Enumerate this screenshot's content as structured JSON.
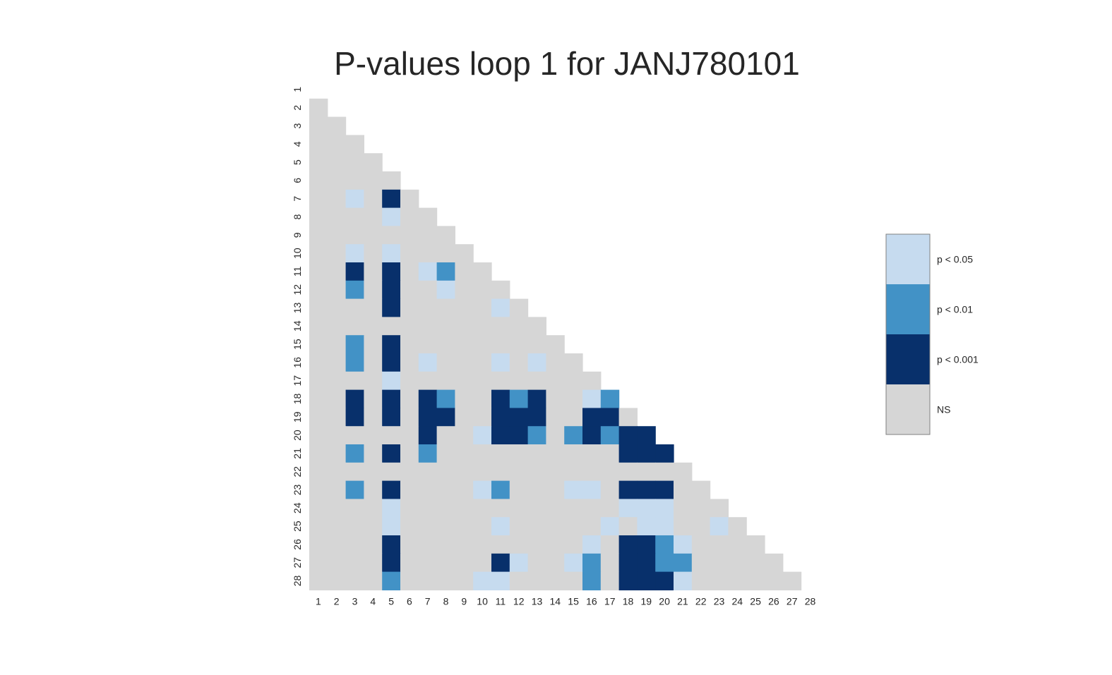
{
  "chart_data": {
    "type": "heatmap",
    "title": "P-values loop 1 for JANJ780101",
    "xlabel": "",
    "ylabel": "",
    "x_ticks": [
      "1",
      "2",
      "3",
      "4",
      "5",
      "6",
      "7",
      "8",
      "9",
      "10",
      "11",
      "12",
      "13",
      "14",
      "15",
      "16",
      "17",
      "18",
      "19",
      "20",
      "21",
      "22",
      "23",
      "24",
      "25",
      "26",
      "27",
      "28"
    ],
    "y_ticks": [
      "1",
      "2",
      "3",
      "4",
      "5",
      "6",
      "7",
      "8",
      "9",
      "10",
      "11",
      "12",
      "13",
      "14",
      "15",
      "16",
      "17",
      "18",
      "19",
      "20",
      "21",
      "22",
      "23",
      "24",
      "25",
      "26",
      "27",
      "28"
    ],
    "mask": "upper-triangle (lower triangle shown, diagonal hidden)",
    "grid": false,
    "legend": {
      "placement": "right",
      "levels": [
        {
          "key": 3,
          "label": "p < 0.05",
          "color": "#c6dbef"
        },
        {
          "key": 2,
          "label": "p < 0.01",
          "color": "#4292c6"
        },
        {
          "key": 1,
          "label": "p < 0.001",
          "color": "#08306b"
        },
        {
          "key": 0,
          "label": "NS",
          "color": "#d6d6d6"
        }
      ]
    },
    "level_codes": {
      "0": "NS",
      "1": "p < 0.001",
      "2": "p < 0.01",
      "3": "p < 0.05"
    },
    "cells": [
      [],
      [
        0
      ],
      [
        0,
        0
      ],
      [
        0,
        0,
        0
      ],
      [
        0,
        0,
        0,
        0
      ],
      [
        0,
        0,
        0,
        0,
        0
      ],
      [
        0,
        0,
        3,
        0,
        1,
        0
      ],
      [
        0,
        0,
        0,
        0,
        3,
        0,
        0
      ],
      [
        0,
        0,
        0,
        0,
        0,
        0,
        0,
        0
      ],
      [
        0,
        0,
        3,
        0,
        3,
        0,
        0,
        0,
        0
      ],
      [
        0,
        0,
        1,
        0,
        1,
        0,
        3,
        2,
        0,
        0
      ],
      [
        0,
        0,
        2,
        0,
        1,
        0,
        0,
        3,
        0,
        0,
        0
      ],
      [
        0,
        0,
        0,
        0,
        1,
        0,
        0,
        0,
        0,
        0,
        3,
        0
      ],
      [
        0,
        0,
        0,
        0,
        0,
        0,
        0,
        0,
        0,
        0,
        0,
        0,
        0
      ],
      [
        0,
        0,
        2,
        0,
        1,
        0,
        0,
        0,
        0,
        0,
        0,
        0,
        0,
        0
      ],
      [
        0,
        0,
        2,
        0,
        1,
        0,
        3,
        0,
        0,
        0,
        3,
        0,
        3,
        0,
        0
      ],
      [
        0,
        0,
        0,
        0,
        3,
        0,
        0,
        0,
        0,
        0,
        0,
        0,
        0,
        0,
        0,
        0
      ],
      [
        0,
        0,
        1,
        0,
        1,
        0,
        1,
        2,
        0,
        0,
        1,
        2,
        1,
        0,
        0,
        3,
        2
      ],
      [
        0,
        0,
        1,
        0,
        1,
        0,
        1,
        1,
        0,
        0,
        1,
        1,
        1,
        0,
        0,
        1,
        1,
        0
      ],
      [
        0,
        0,
        0,
        0,
        0,
        0,
        1,
        0,
        0,
        3,
        1,
        1,
        2,
        0,
        2,
        1,
        2,
        1,
        1
      ],
      [
        0,
        0,
        2,
        0,
        1,
        0,
        2,
        0,
        0,
        0,
        0,
        0,
        0,
        0,
        0,
        0,
        0,
        1,
        1,
        1
      ],
      [
        0,
        0,
        0,
        0,
        0,
        0,
        0,
        0,
        0,
        0,
        0,
        0,
        0,
        0,
        0,
        0,
        0,
        0,
        0,
        0,
        0
      ],
      [
        0,
        0,
        2,
        0,
        1,
        0,
        0,
        0,
        0,
        3,
        2,
        0,
        0,
        0,
        3,
        3,
        0,
        1,
        1,
        1,
        0,
        0
      ],
      [
        0,
        0,
        0,
        0,
        3,
        0,
        0,
        0,
        0,
        0,
        0,
        0,
        0,
        0,
        0,
        0,
        0,
        3,
        3,
        3,
        0,
        0,
        0
      ],
      [
        0,
        0,
        0,
        0,
        3,
        0,
        0,
        0,
        0,
        0,
        3,
        0,
        0,
        0,
        0,
        0,
        3,
        0,
        3,
        3,
        0,
        0,
        3,
        0
      ],
      [
        0,
        0,
        0,
        0,
        1,
        0,
        0,
        0,
        0,
        0,
        0,
        0,
        0,
        0,
        0,
        3,
        0,
        1,
        1,
        2,
        3,
        0,
        0,
        0,
        0
      ],
      [
        0,
        0,
        0,
        0,
        1,
        0,
        0,
        0,
        0,
        0,
        1,
        3,
        0,
        0,
        3,
        2,
        0,
        1,
        1,
        2,
        2,
        0,
        0,
        0,
        0,
        0
      ],
      [
        0,
        0,
        0,
        0,
        2,
        0,
        0,
        0,
        0,
        3,
        3,
        0,
        0,
        0,
        0,
        2,
        0,
        1,
        1,
        1,
        3,
        0,
        0,
        0,
        0,
        0,
        0
      ]
    ]
  }
}
